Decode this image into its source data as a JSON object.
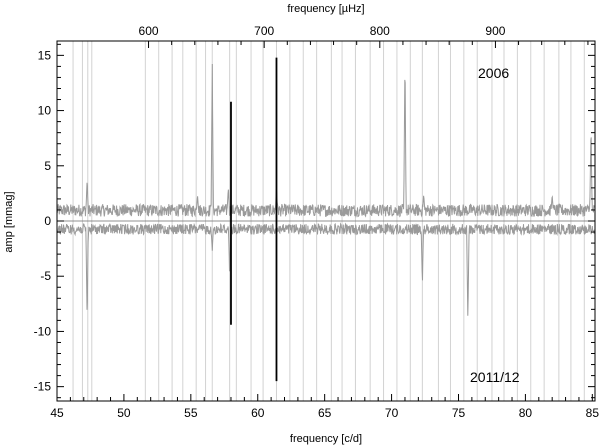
{
  "chart_data": {
    "type": "line",
    "xlabel": "frequency [c/d]",
    "x2label": "frequency [µHz]",
    "ylabel": "amp [mmag]",
    "xlim": [
      45,
      85.2
    ],
    "ylim": [
      -16.3,
      16.3
    ],
    "x_ticks": [
      45,
      50,
      55,
      60,
      65,
      70,
      75,
      80,
      85
    ],
    "x2_ticks": [
      600,
      700,
      800,
      900
    ],
    "y_ticks": [
      -15,
      -10,
      -5,
      0,
      5,
      10,
      15
    ],
    "annotations": [
      "2006",
      "2011/12"
    ],
    "grid_lines_x": [
      46.2,
      46.9,
      47.3,
      47.6,
      51.6,
      52.6,
      53.6,
      54.4,
      55.4,
      56.1,
      56.6,
      57.9,
      58.4,
      59.5,
      60.4,
      61.4,
      62.4,
      63.4,
      64.4,
      65.5,
      66.3,
      67.3,
      68.4,
      69.4,
      70.4,
      71.4,
      72.3,
      73.5,
      74.4,
      75.4,
      76.4,
      77.5,
      78.4,
      79.4,
      80.4,
      81.4,
      82.5,
      83.4,
      84.4
    ],
    "series": [
      {
        "period": "2006",
        "baseline": 0.8,
        "noise": 0.7,
        "peaks": [
          {
            "x": 47.25,
            "y": 3.8
          },
          {
            "x": 55.5,
            "y": 2.4
          },
          {
            "x": 56.6,
            "y": 14.3
          },
          {
            "x": 57.8,
            "y": 3.0
          },
          {
            "x": 61.4,
            "y": 3.0
          },
          {
            "x": 71.0,
            "y": 14.9
          },
          {
            "x": 72.4,
            "y": 2.4
          },
          {
            "x": 82.0,
            "y": 2.4
          },
          {
            "x": 84.9,
            "y": 8.7
          }
        ]
      },
      {
        "period": "2011/12",
        "baseline": -0.6,
        "noise": 0.6,
        "peaks": [
          {
            "x": 47.25,
            "y": -9.0
          },
          {
            "x": 56.6,
            "y": -2.7
          },
          {
            "x": 57.9,
            "y": -4.9
          },
          {
            "x": 72.3,
            "y": -5.8
          },
          {
            "x": 75.7,
            "y": -9.0
          }
        ]
      }
    ],
    "marked_frequencies": [
      {
        "x": 58.0,
        "y_top": 10.8,
        "y_bottom": -9.4
      },
      {
        "x": 61.4,
        "y_top": 14.8,
        "y_bottom": -14.5
      }
    ]
  }
}
